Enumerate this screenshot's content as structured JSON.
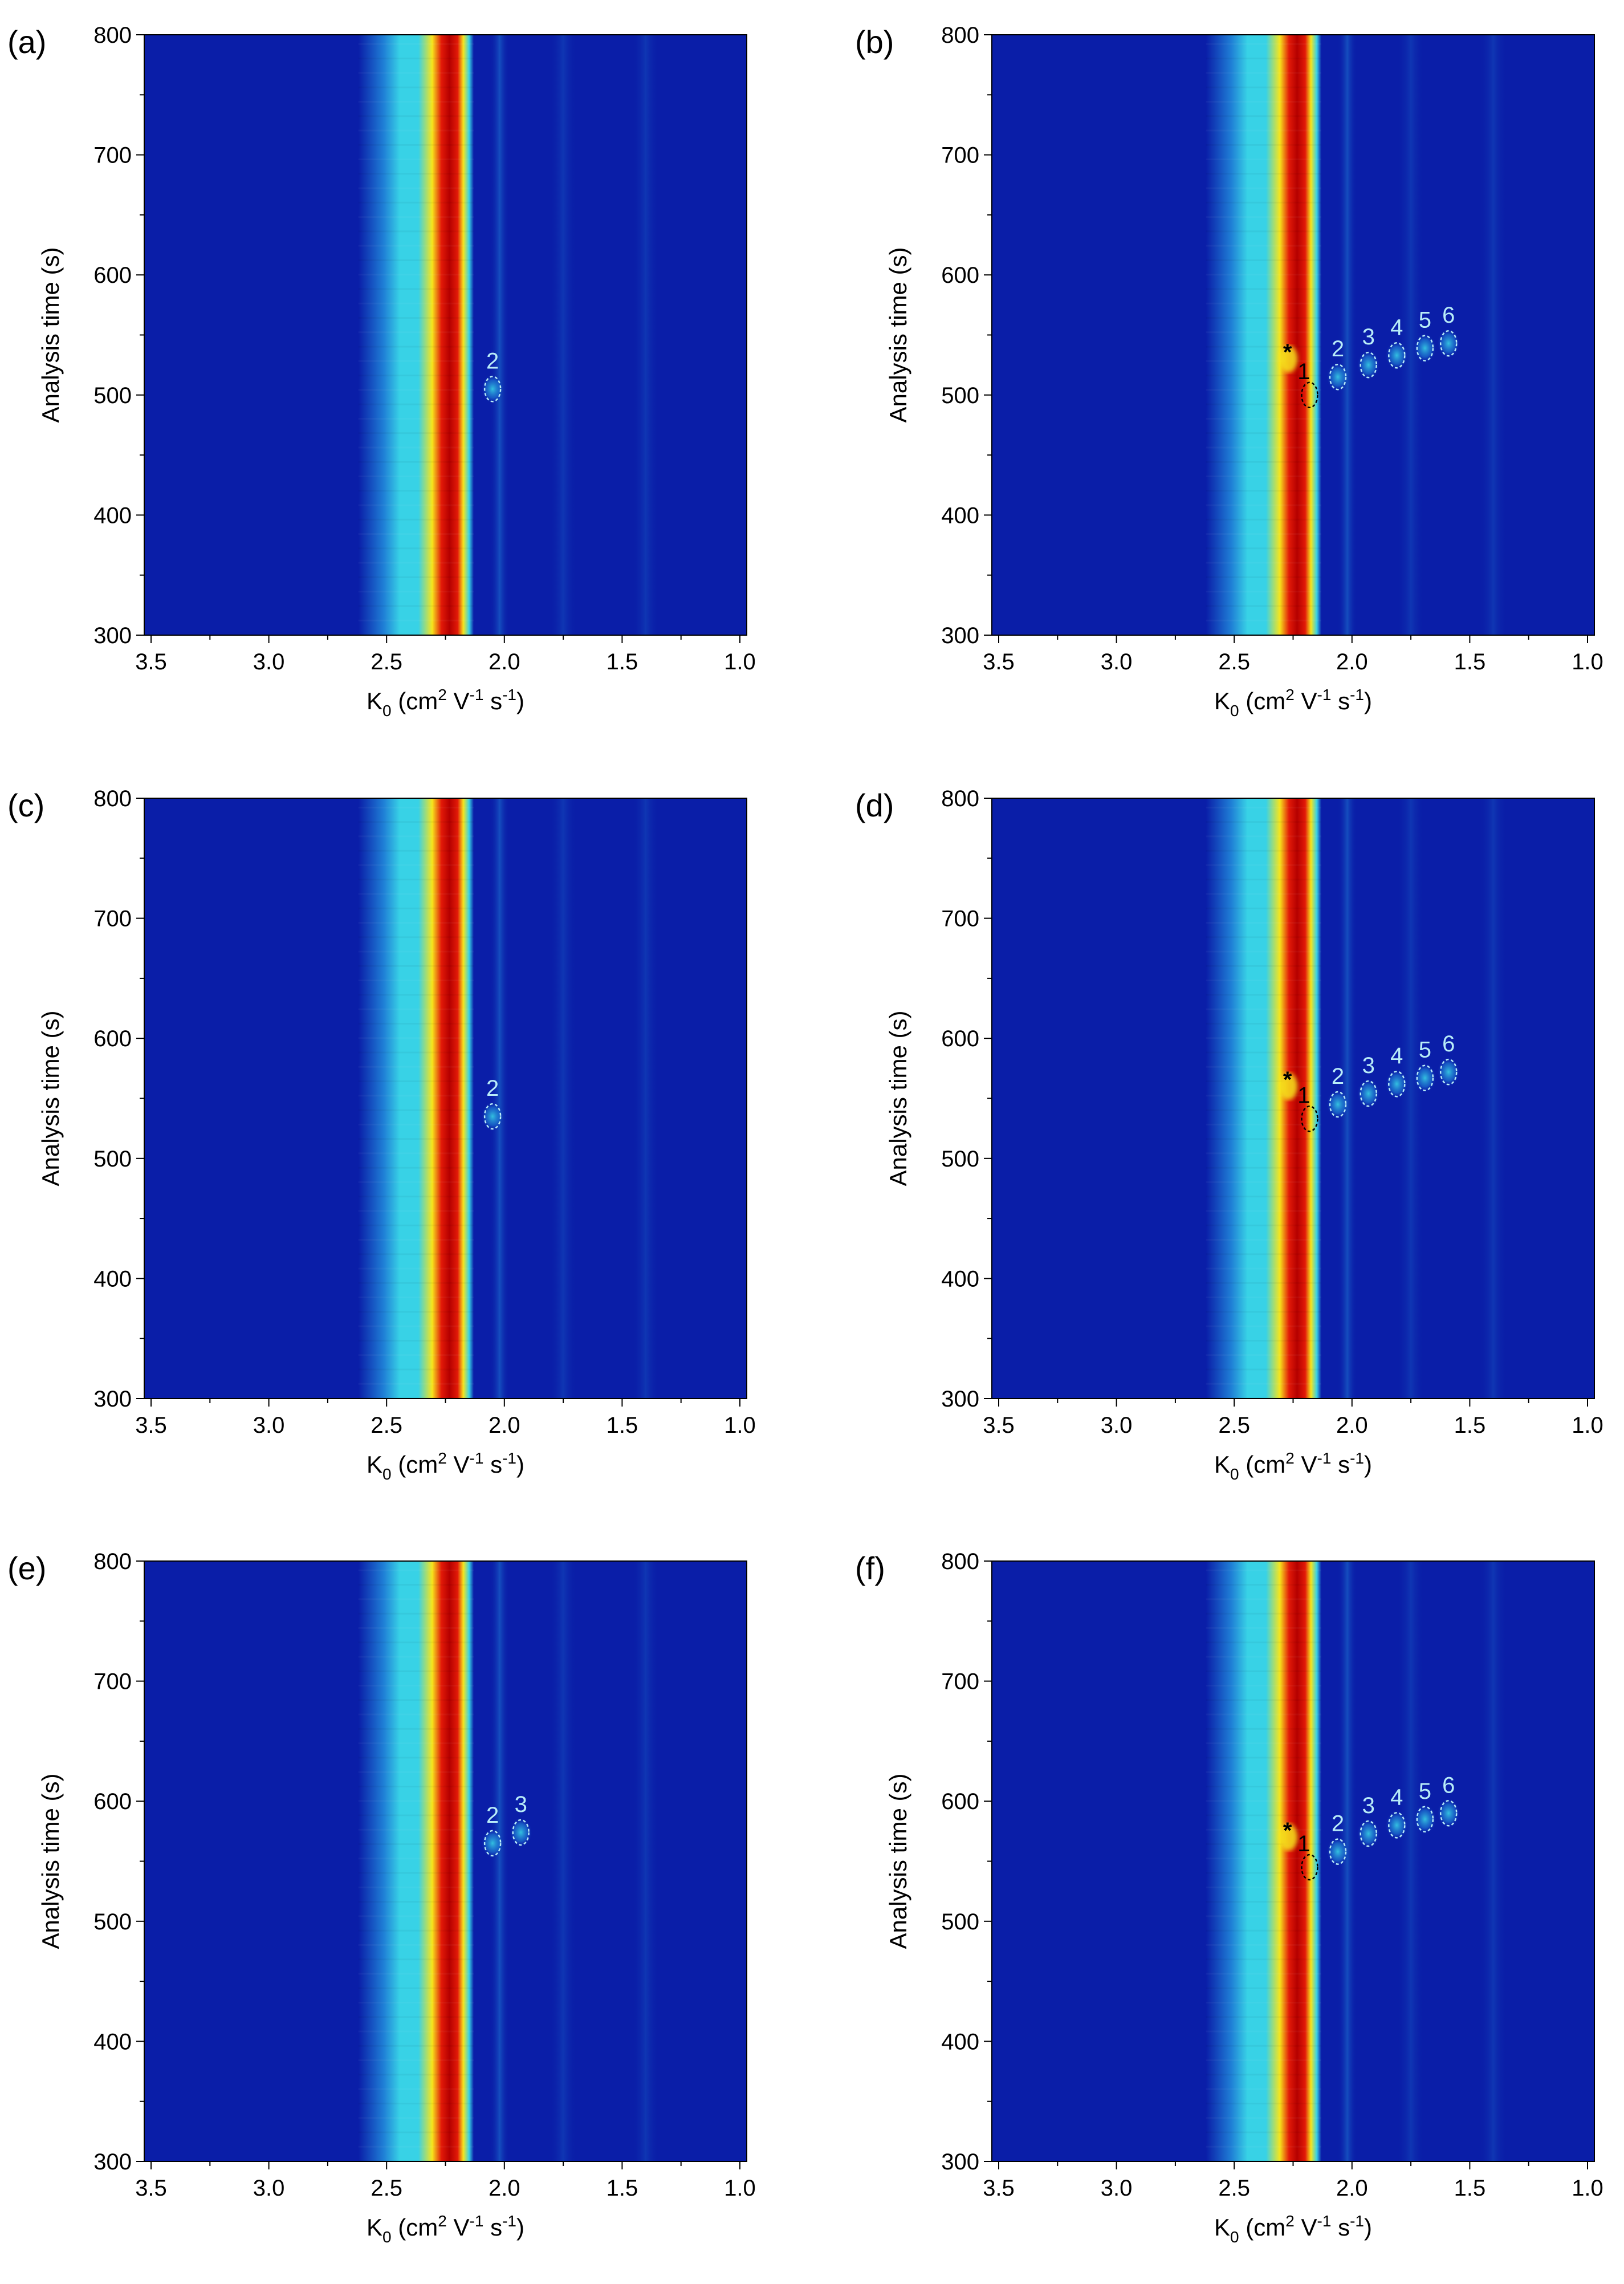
{
  "figure": {
    "colors": {
      "background": "#0a1ea8",
      "dark_background": "#06139a",
      "band_cyan": "#38d2e6",
      "band_light_blue": "#1f7fd6",
      "band_core": "#b50000",
      "band_red": "#e21a08",
      "band_yellow": "#f6e51c",
      "marker_light": "#b8ecf8",
      "marker_dark": "#000000",
      "axis": "#000000",
      "figure_bg": "#ffffff"
    }
  },
  "chart_data": [
    {
      "panel": "(a)",
      "type": "heatmap",
      "xlabel": "K0 (cm2 V-1 s-1)",
      "xlabel_parts": {
        "base": "K",
        "base_sub": "0",
        "open": " (cm",
        "sup1": "2",
        "mid": " V",
        "sup2": "-1",
        "mid2": " s",
        "sup3": "-1",
        "close": ")"
      },
      "ylabel": "Analysis time (s)",
      "x_range": [
        3.5,
        1.0
      ],
      "y_range": [
        300,
        800
      ],
      "x_ticks": [
        "3.5",
        "3.0",
        "2.5",
        "2.0",
        "1.5",
        "1.0"
      ],
      "x_tick_values": [
        3.5,
        3.0,
        2.5,
        2.0,
        1.5,
        1.0
      ],
      "y_ticks": [
        "300",
        "400",
        "500",
        "600",
        "700",
        "800"
      ],
      "y_tick_values": [
        300,
        400,
        500,
        600,
        700,
        800
      ],
      "main_peak_k0": 2.27,
      "reactant_ion_peak_k0": 2.02,
      "minor_band_k0": [
        2.5,
        2.02,
        1.75,
        1.4
      ],
      "dimer_break_time": null,
      "star_marker": null,
      "peaks": [
        {
          "label": "2",
          "k0": 2.05,
          "time": 505,
          "style": "light"
        }
      ]
    },
    {
      "panel": "(b)",
      "type": "heatmap",
      "xlabel": "K0 (cm2 V-1 s-1)",
      "xlabel_parts": {
        "base": "K",
        "base_sub": "0",
        "open": " (cm",
        "sup1": "2",
        "mid": " V",
        "sup2": "-1",
        "mid2": " s",
        "sup3": "-1",
        "close": ")"
      },
      "ylabel": "Analysis time (s)",
      "x_range": [
        3.5,
        1.0
      ],
      "y_range": [
        300,
        800
      ],
      "x_ticks": [
        "3.5",
        "3.0",
        "2.5",
        "2.0",
        "1.5",
        "1.0"
      ],
      "x_tick_values": [
        3.5,
        3.0,
        2.5,
        2.0,
        1.5,
        1.0
      ],
      "y_ticks": [
        "300",
        "400",
        "500",
        "600",
        "700",
        "800"
      ],
      "y_tick_values": [
        300,
        400,
        500,
        600,
        700,
        800
      ],
      "main_peak_k0": 2.27,
      "reactant_ion_peak_k0": 2.02,
      "minor_band_k0": [
        2.5,
        2.02,
        1.75,
        1.4
      ],
      "dimer_break_time": 530,
      "star_marker": {
        "label": "*",
        "k0": 2.24,
        "time": 535
      },
      "peaks": [
        {
          "label": "1",
          "k0": 2.18,
          "time": 500,
          "style": "dark"
        },
        {
          "label": "2",
          "k0": 2.06,
          "time": 515,
          "style": "light"
        },
        {
          "label": "3",
          "k0": 1.93,
          "time": 525,
          "style": "light"
        },
        {
          "label": "4",
          "k0": 1.81,
          "time": 533,
          "style": "light"
        },
        {
          "label": "5",
          "k0": 1.69,
          "time": 539,
          "style": "light"
        },
        {
          "label": "6",
          "k0": 1.59,
          "time": 543,
          "style": "light"
        }
      ]
    },
    {
      "panel": "(c)",
      "type": "heatmap",
      "xlabel": "K0 (cm2 V-1 s-1)",
      "xlabel_parts": {
        "base": "K",
        "base_sub": "0",
        "open": " (cm",
        "sup1": "2",
        "mid": " V",
        "sup2": "-1",
        "mid2": " s",
        "sup3": "-1",
        "close": ")"
      },
      "ylabel": "Analysis time (s)",
      "x_range": [
        3.5,
        1.0
      ],
      "y_range": [
        300,
        800
      ],
      "x_ticks": [
        "3.5",
        "3.0",
        "2.5",
        "2.0",
        "1.5",
        "1.0"
      ],
      "x_tick_values": [
        3.5,
        3.0,
        2.5,
        2.0,
        1.5,
        1.0
      ],
      "y_ticks": [
        "300",
        "400",
        "500",
        "600",
        "700",
        "800"
      ],
      "y_tick_values": [
        300,
        400,
        500,
        600,
        700,
        800
      ],
      "main_peak_k0": 2.27,
      "reactant_ion_peak_k0": 2.02,
      "minor_band_k0": [
        2.5,
        2.02,
        1.75,
        1.4
      ],
      "dimer_break_time": null,
      "star_marker": null,
      "peaks": [
        {
          "label": "2",
          "k0": 2.05,
          "time": 535,
          "style": "light"
        }
      ]
    },
    {
      "panel": "(d)",
      "type": "heatmap",
      "xlabel": "K0 (cm2 V-1 s-1)",
      "xlabel_parts": {
        "base": "K",
        "base_sub": "0",
        "open": " (cm",
        "sup1": "2",
        "mid": " V",
        "sup2": "-1",
        "mid2": " s",
        "sup3": "-1",
        "close": ")"
      },
      "ylabel": "Analysis time (s)",
      "x_range": [
        3.5,
        1.0
      ],
      "y_range": [
        300,
        800
      ],
      "x_ticks": [
        "3.5",
        "3.0",
        "2.5",
        "2.0",
        "1.5",
        "1.0"
      ],
      "x_tick_values": [
        3.5,
        3.0,
        2.5,
        2.0,
        1.5,
        1.0
      ],
      "y_ticks": [
        "300",
        "400",
        "500",
        "600",
        "700",
        "800"
      ],
      "y_tick_values": [
        300,
        400,
        500,
        600,
        700,
        800
      ],
      "main_peak_k0": 2.27,
      "reactant_ion_peak_k0": 2.02,
      "minor_band_k0": [
        2.5,
        2.02,
        1.75,
        1.4
      ],
      "dimer_break_time": 560,
      "star_marker": {
        "label": "*",
        "k0": 2.24,
        "time": 565
      },
      "peaks": [
        {
          "label": "1",
          "k0": 2.18,
          "time": 533,
          "style": "dark"
        },
        {
          "label": "2",
          "k0": 2.06,
          "time": 545,
          "style": "light"
        },
        {
          "label": "3",
          "k0": 1.93,
          "time": 554,
          "style": "light"
        },
        {
          "label": "4",
          "k0": 1.81,
          "time": 562,
          "style": "light"
        },
        {
          "label": "5",
          "k0": 1.69,
          "time": 567,
          "style": "light"
        },
        {
          "label": "6",
          "k0": 1.59,
          "time": 572,
          "style": "light"
        }
      ]
    },
    {
      "panel": "(e)",
      "type": "heatmap",
      "xlabel": "K0 (cm2 V-1 s-1)",
      "xlabel_parts": {
        "base": "K",
        "base_sub": "0",
        "open": " (cm",
        "sup1": "2",
        "mid": " V",
        "sup2": "-1",
        "mid2": " s",
        "sup3": "-1",
        "close": ")"
      },
      "ylabel": "Analysis time (s)",
      "x_range": [
        3.5,
        1.0
      ],
      "y_range": [
        300,
        800
      ],
      "x_ticks": [
        "3.5",
        "3.0",
        "2.5",
        "2.0",
        "1.5",
        "1.0"
      ],
      "x_tick_values": [
        3.5,
        3.0,
        2.5,
        2.0,
        1.5,
        1.0
      ],
      "y_ticks": [
        "300",
        "400",
        "500",
        "600",
        "700",
        "800"
      ],
      "y_tick_values": [
        300,
        400,
        500,
        600,
        700,
        800
      ],
      "main_peak_k0": 2.27,
      "reactant_ion_peak_k0": 2.02,
      "minor_band_k0": [
        2.5,
        2.02,
        1.75,
        1.4
      ],
      "dimer_break_time": null,
      "star_marker": null,
      "peaks": [
        {
          "label": "2",
          "k0": 2.05,
          "time": 565,
          "style": "light"
        },
        {
          "label": "3",
          "k0": 1.93,
          "time": 574,
          "style": "light"
        }
      ]
    },
    {
      "panel": "(f)",
      "type": "heatmap",
      "xlabel": "K0 (cm2 V-1 s-1)",
      "xlabel_parts": {
        "base": "K",
        "base_sub": "0",
        "open": " (cm",
        "sup1": "2",
        "mid": " V",
        "sup2": "-1",
        "mid2": " s",
        "sup3": "-1",
        "close": ")"
      },
      "ylabel": "Analysis time (s)",
      "x_range": [
        3.5,
        1.0
      ],
      "y_range": [
        300,
        800
      ],
      "x_ticks": [
        "3.5",
        "3.0",
        "2.5",
        "2.0",
        "1.5",
        "1.0"
      ],
      "x_tick_values": [
        3.5,
        3.0,
        2.5,
        2.0,
        1.5,
        1.0
      ],
      "y_ticks": [
        "300",
        "400",
        "500",
        "600",
        "700",
        "800"
      ],
      "y_tick_values": [
        300,
        400,
        500,
        600,
        700,
        800
      ],
      "main_peak_k0": 2.27,
      "reactant_ion_peak_k0": 2.02,
      "minor_band_k0": [
        2.5,
        2.02,
        1.75,
        1.4
      ],
      "dimer_break_time": 570,
      "star_marker": {
        "label": "*",
        "k0": 2.24,
        "time": 575
      },
      "peaks": [
        {
          "label": "1",
          "k0": 2.18,
          "time": 545,
          "style": "dark"
        },
        {
          "label": "2",
          "k0": 2.06,
          "time": 558,
          "style": "light"
        },
        {
          "label": "3",
          "k0": 1.93,
          "time": 573,
          "style": "light"
        },
        {
          "label": "4",
          "k0": 1.81,
          "time": 580,
          "style": "light"
        },
        {
          "label": "5",
          "k0": 1.69,
          "time": 585,
          "style": "light"
        },
        {
          "label": "6",
          "k0": 1.59,
          "time": 590,
          "style": "light"
        }
      ]
    }
  ]
}
